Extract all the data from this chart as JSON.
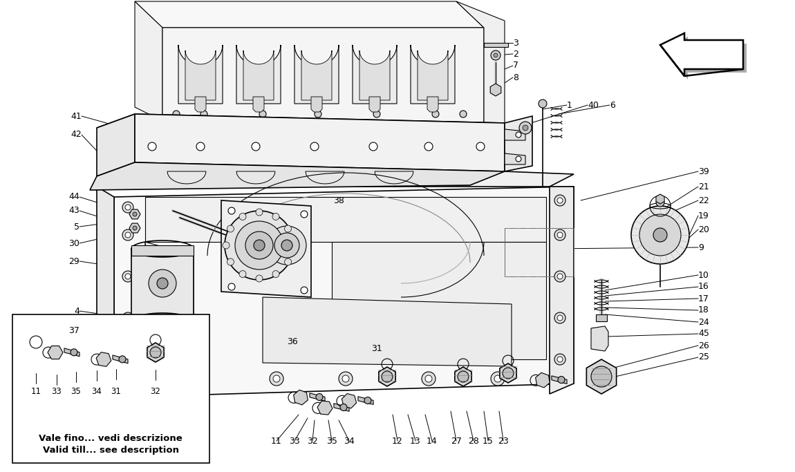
{
  "background_color": "#ffffff",
  "line_color": "#000000",
  "gray_light": "#e8e8e8",
  "gray_mid": "#cccccc",
  "gray_dark": "#888888",
  "inset_text_line1": "Vale fino... vedi descrizione",
  "inset_text_line2": "Valid till... see description",
  "label_fontsize": 8.5,
  "label_bold_fontsize": 9.5,
  "part_number_fontsize": 9
}
